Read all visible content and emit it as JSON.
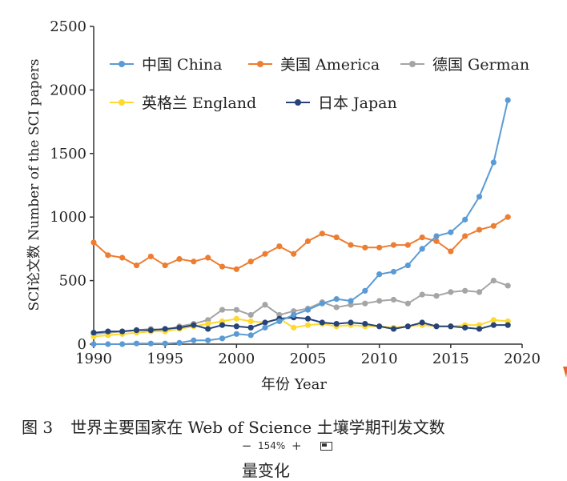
{
  "chart_data": {
    "type": "line",
    "xlabel": "年份 Year",
    "ylabel": "SCI论文数 Number of the SCI papers",
    "xlim": [
      1990,
      2020
    ],
    "ylim": [
      0,
      2500
    ],
    "xticks": [
      1990,
      1995,
      2000,
      2005,
      2010,
      2015,
      2020
    ],
    "yticks": [
      0,
      500,
      1000,
      1500,
      2000,
      2500
    ],
    "grid": false,
    "legend_position": "top-left",
    "x": [
      1990,
      1991,
      1992,
      1993,
      1994,
      1995,
      1996,
      1997,
      1998,
      1999,
      2000,
      2001,
      2002,
      2003,
      2004,
      2005,
      2006,
      2007,
      2008,
      2009,
      2010,
      2011,
      2012,
      2013,
      2014,
      2015,
      2016,
      2017,
      2018,
      2019
    ],
    "series": [
      {
        "name": "中国 China",
        "color": "#5b9bd5",
        "values": [
          0,
          0,
          0,
          5,
          5,
          5,
          10,
          30,
          30,
          45,
          80,
          70,
          130,
          180,
          230,
          270,
          320,
          355,
          340,
          420,
          550,
          570,
          620,
          750,
          850,
          880,
          980,
          1160,
          1430,
          1920
        ]
      },
      {
        "name": "美国 America",
        "color": "#ed7d31",
        "values": [
          800,
          700,
          680,
          620,
          690,
          620,
          670,
          650,
          680,
          610,
          590,
          650,
          710,
          770,
          710,
          810,
          870,
          840,
          780,
          760,
          760,
          780,
          780,
          840,
          810,
          730,
          850,
          900,
          930,
          1000
        ]
      },
      {
        "name": "德国 German",
        "color": "#a5a5a5",
        "values": [
          80,
          90,
          100,
          110,
          120,
          110,
          140,
          160,
          190,
          270,
          270,
          230,
          310,
          230,
          260,
          280,
          330,
          290,
          310,
          320,
          340,
          350,
          320,
          390,
          380,
          410,
          420,
          410,
          500,
          460
        ]
      },
      {
        "name": "英格兰 England",
        "color": "#ffd92f",
        "values": [
          60,
          70,
          80,
          90,
          100,
          100,
          120,
          140,
          160,
          180,
          200,
          180,
          170,
          200,
          130,
          150,
          160,
          140,
          150,
          140,
          140,
          130,
          140,
          150,
          140,
          140,
          150,
          150,
          190,
          180
        ]
      },
      {
        "name": "日本 Japan",
        "color": "#264478",
        "values": [
          90,
          100,
          100,
          110,
          110,
          120,
          130,
          150,
          120,
          150,
          140,
          130,
          170,
          200,
          210,
          200,
          170,
          160,
          170,
          160,
          140,
          120,
          140,
          170,
          140,
          140,
          130,
          120,
          150,
          150
        ]
      }
    ]
  },
  "caption": {
    "figure_label": "图 3",
    "text": "世界主要国家在 Web of Science 土壤学期刊发文数",
    "text_cont": "量变化"
  },
  "zoom": {
    "minus": "−",
    "value": "154%",
    "plus": "+"
  },
  "colors": {
    "axis": "#333333",
    "edge_mark": "#e5662a"
  }
}
